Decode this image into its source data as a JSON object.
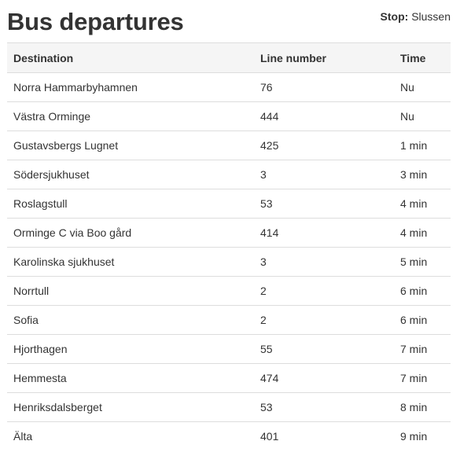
{
  "header": {
    "title": "Bus departures",
    "stop_label": "Stop:",
    "stop_name": "Slussen"
  },
  "table": {
    "columns": [
      "Destination",
      "Line number",
      "Time"
    ],
    "rows": [
      {
        "destination": "Norra Hammarbyhamnen",
        "line": "76",
        "time": "Nu"
      },
      {
        "destination": "Västra Orminge",
        "line": "444",
        "time": "Nu"
      },
      {
        "destination": "Gustavsbergs Lugnet",
        "line": "425",
        "time": "1 min"
      },
      {
        "destination": "Södersjukhuset",
        "line": "3",
        "time": "3 min"
      },
      {
        "destination": "Roslagstull",
        "line": "53",
        "time": "4 min"
      },
      {
        "destination": "Orminge C via Boo gård",
        "line": "414",
        "time": "4 min"
      },
      {
        "destination": "Karolinska sjukhuset",
        "line": "3",
        "time": "5 min"
      },
      {
        "destination": "Norrtull",
        "line": "2",
        "time": "6 min"
      },
      {
        "destination": "Sofia",
        "line": "2",
        "time": "6 min"
      },
      {
        "destination": "Hjorthagen",
        "line": "55",
        "time": "7 min"
      },
      {
        "destination": "Hemmesta",
        "line": "474",
        "time": "7 min"
      },
      {
        "destination": "Henriksdalsberget",
        "line": "53",
        "time": "8 min"
      },
      {
        "destination": "Älta",
        "line": "401",
        "time": "9 min"
      }
    ]
  }
}
